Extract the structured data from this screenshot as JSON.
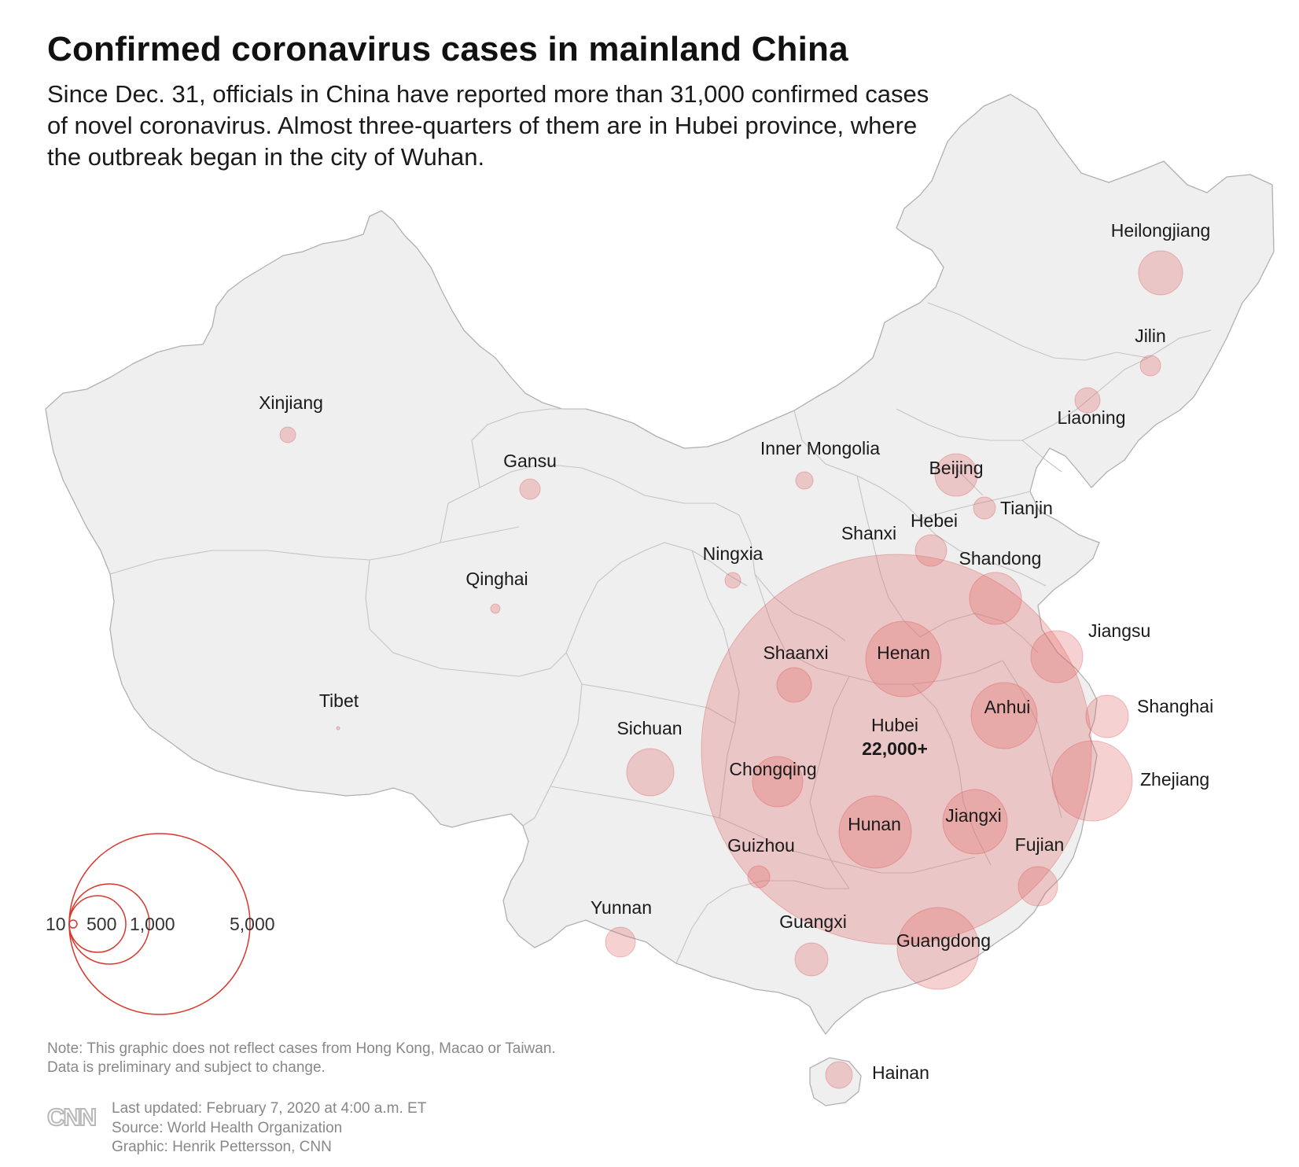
{
  "title": "Confirmed coronavirus cases in mainland China",
  "subtitle": "Since Dec. 31, officials in China have reported more than 31,000 confirmed cases of novel coronavirus. Almost three-quarters of them are in Hubei province, where the outbreak began in the city of Wuhan.",
  "colors": {
    "bubble_fill": "#e06666",
    "bubble_stroke": "#d94f4f",
    "land": "#efefef",
    "border": "#c8c8c8",
    "legend": "#d9372b"
  },
  "regions": [
    {
      "name": "Heilongjiang"
    },
    {
      "name": "Jilin"
    },
    {
      "name": "Liaoning"
    },
    {
      "name": "Xinjiang"
    },
    {
      "name": "Gansu"
    },
    {
      "name": "Inner Mongolia"
    },
    {
      "name": "Beijing"
    },
    {
      "name": "Tianjin"
    },
    {
      "name": "Hebei"
    },
    {
      "name": "Shanxi"
    },
    {
      "name": "Ningxia"
    },
    {
      "name": "Shandong"
    },
    {
      "name": "Qinghai"
    },
    {
      "name": "Jiangsu"
    },
    {
      "name": "Shaanxi"
    },
    {
      "name": "Henan"
    },
    {
      "name": "Tibet"
    },
    {
      "name": "Anhui"
    },
    {
      "name": "Shanghai"
    },
    {
      "name": "Hubei",
      "value_label": "22,000+"
    },
    {
      "name": "Sichuan"
    },
    {
      "name": "Chongqing"
    },
    {
      "name": "Zhejiang"
    },
    {
      "name": "Hunan"
    },
    {
      "name": "Jiangxi"
    },
    {
      "name": "Guizhou"
    },
    {
      "name": "Fujian"
    },
    {
      "name": "Yunnan"
    },
    {
      "name": "Guangxi"
    },
    {
      "name": "Guangdong"
    },
    {
      "name": "Hainan"
    }
  ],
  "legend": {
    "values": [
      10,
      500,
      1000,
      5000
    ],
    "labels": [
      "10",
      "500",
      "1,000",
      "5,000"
    ]
  },
  "note": [
    "Note: This graphic does not reflect cases from Hong Kong, Macao or Taiwan.",
    "Data is preliminary and subject to change."
  ],
  "credits": [
    "Last updated: February 7, 2020 at 4:00 a.m. ET",
    "Source: World Health Organization",
    "Graphic: Henrik Pettersson, CNN"
  ],
  "logo_text": "CNN"
}
